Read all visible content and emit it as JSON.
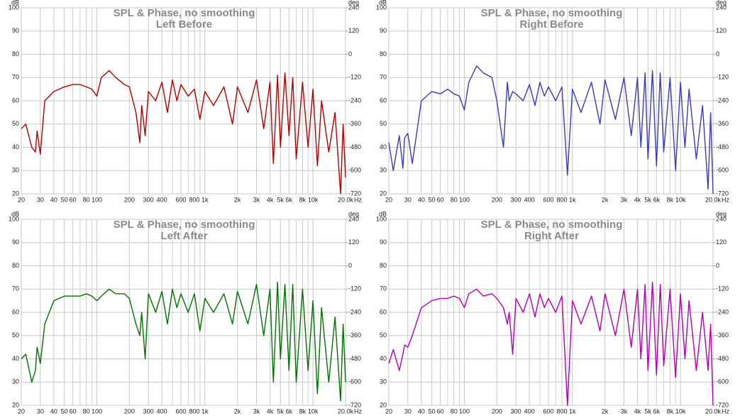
{
  "chart_data": [
    {
      "type": "line",
      "title": "SPL & Phase, no smoothing",
      "subtitle": "Left Before",
      "ylabel": "dB",
      "y2label": "deg",
      "xlabel": "Hz",
      "xscale": "log",
      "grid": true,
      "color": "#b00000",
      "xlim": [
        20,
        20000
      ],
      "ylim": [
        20,
        100
      ],
      "y2lim": [
        -720,
        240
      ],
      "xticks": [
        20,
        30,
        40,
        50,
        60,
        80,
        100,
        200,
        300,
        400,
        600,
        800,
        {
          "value": 1000,
          "label": "1k"
        },
        {
          "value": 2000,
          "label": "2k"
        },
        {
          "value": 3000,
          "label": "3k"
        },
        {
          "value": 4000,
          "label": "4k"
        },
        {
          "value": 5000,
          "label": "5k"
        },
        {
          "value": 6000,
          "label": "6k"
        },
        {
          "value": 8000,
          "label": "8k"
        },
        {
          "value": 10000,
          "label": "10k"
        },
        {
          "value": 20000,
          "label": "20.0k"
        }
      ],
      "xminorticks": [
        70,
        90,
        500,
        700,
        900,
        7000,
        9000
      ],
      "yticks": [
        20,
        30,
        40,
        50,
        60,
        70,
        80,
        90,
        100
      ],
      "y2ticks": [
        -720,
        -600,
        -480,
        -360,
        -240,
        -120,
        0,
        120,
        240
      ],
      "x": [
        20,
        22,
        25,
        27,
        28,
        30,
        33,
        40,
        50,
        60,
        70,
        80,
        90,
        100,
        110,
        130,
        150,
        180,
        200,
        230,
        250,
        260,
        280,
        300,
        350,
        400,
        450,
        500,
        550,
        600,
        700,
        800,
        900,
        1000,
        1200,
        1500,
        1800,
        2000,
        2500,
        3000,
        3500,
        4000,
        4300,
        4700,
        5000,
        5500,
        6000,
        6500,
        7000,
        8000,
        9000,
        10000,
        11000,
        12000,
        14000,
        16000,
        18000,
        19000,
        20000
      ],
      "values": [
        48,
        50,
        40,
        38,
        47,
        37,
        60,
        64,
        66,
        67,
        67,
        66,
        65,
        62,
        70,
        73,
        70,
        67,
        66,
        55,
        42,
        58,
        45,
        64,
        60,
        68,
        55,
        69,
        60,
        67,
        62,
        65,
        52,
        64,
        58,
        66,
        50,
        66,
        55,
        69,
        48,
        68,
        33,
        71,
        40,
        72,
        45,
        70,
        35,
        68,
        40,
        65,
        32,
        60,
        38,
        55,
        20,
        50,
        27
      ]
    },
    {
      "type": "line",
      "title": "SPL & Phase, no smoothing",
      "subtitle": "Right Before",
      "ylabel": "dB",
      "y2label": "deg",
      "xlabel": "Hz",
      "xscale": "log",
      "grid": true,
      "color": "#3a3ab8",
      "xlim": [
        20,
        20000
      ],
      "ylim": [
        20,
        100
      ],
      "y2lim": [
        -720,
        240
      ],
      "xticks": [
        20,
        30,
        40,
        50,
        60,
        80,
        100,
        200,
        300,
        400,
        600,
        800,
        {
          "value": 1000,
          "label": "1k"
        },
        {
          "value": 2000,
          "label": "2k"
        },
        {
          "value": 3000,
          "label": "3k"
        },
        {
          "value": 4000,
          "label": "4k"
        },
        {
          "value": 5000,
          "label": "5k"
        },
        {
          "value": 6000,
          "label": "6k"
        },
        {
          "value": 8000,
          "label": "8k"
        },
        {
          "value": 10000,
          "label": "10k"
        },
        {
          "value": 20000,
          "label": "20.0k"
        }
      ],
      "xminorticks": [
        70,
        90,
        500,
        700,
        900,
        7000,
        9000
      ],
      "yticks": [
        20,
        30,
        40,
        50,
        60,
        70,
        80,
        90,
        100
      ],
      "y2ticks": [
        -720,
        -600,
        -480,
        -360,
        -240,
        -120,
        0,
        120,
        240
      ],
      "x": [
        20,
        22,
        25,
        27,
        28,
        30,
        33,
        40,
        50,
        60,
        70,
        80,
        90,
        100,
        110,
        130,
        150,
        180,
        200,
        230,
        250,
        260,
        280,
        300,
        350,
        400,
        450,
        500,
        550,
        600,
        700,
        800,
        900,
        1000,
        1200,
        1500,
        1800,
        2000,
        2500,
        3000,
        3500,
        4000,
        4300,
        4700,
        5000,
        5500,
        6000,
        6500,
        7000,
        8000,
        9000,
        10000,
        11000,
        12000,
        14000,
        16000,
        18000,
        19000,
        20000
      ],
      "values": [
        42,
        30,
        45,
        31,
        44,
        46,
        33,
        60,
        64,
        63,
        65,
        63,
        62,
        56,
        68,
        75,
        72,
        70,
        60,
        40,
        68,
        60,
        64,
        63,
        60,
        67,
        58,
        68,
        62,
        66,
        60,
        66,
        28,
        65,
        55,
        68,
        50,
        69,
        52,
        70,
        45,
        70,
        40,
        72,
        35,
        73,
        32,
        72,
        38,
        70,
        30,
        68,
        40,
        65,
        35,
        58,
        22,
        55,
        20
      ]
    },
    {
      "type": "line",
      "title": "SPL & Phase, no smoothing",
      "subtitle": "Left After",
      "ylabel": "dB",
      "y2label": "deg",
      "xlabel": "Hz",
      "xscale": "log",
      "grid": true,
      "color": "#007000",
      "xlim": [
        20,
        20000
      ],
      "ylim": [
        20,
        100
      ],
      "y2lim": [
        -720,
        240
      ],
      "xticks": [
        20,
        30,
        40,
        50,
        60,
        80,
        100,
        200,
        300,
        400,
        600,
        800,
        {
          "value": 1000,
          "label": "1k"
        },
        {
          "value": 2000,
          "label": "2k"
        },
        {
          "value": 3000,
          "label": "3k"
        },
        {
          "value": 4000,
          "label": "4k"
        },
        {
          "value": 5000,
          "label": "5k"
        },
        {
          "value": 6000,
          "label": "6k"
        },
        {
          "value": 8000,
          "label": "8k"
        },
        {
          "value": 10000,
          "label": "10k"
        },
        {
          "value": 20000,
          "label": "20.0k"
        }
      ],
      "xminorticks": [
        70,
        90,
        500,
        700,
        900,
        7000,
        9000
      ],
      "yticks": [
        20,
        30,
        40,
        50,
        60,
        70,
        80,
        90,
        100
      ],
      "y2ticks": [
        -720,
        -600,
        -480,
        -360,
        -240,
        -120,
        0,
        120,
        240
      ],
      "x": [
        20,
        22,
        25,
        27,
        28,
        30,
        33,
        40,
        50,
        60,
        70,
        80,
        90,
        100,
        110,
        130,
        150,
        180,
        200,
        230,
        250,
        260,
        280,
        300,
        350,
        400,
        450,
        500,
        550,
        600,
        700,
        800,
        900,
        1000,
        1200,
        1500,
        1800,
        2000,
        2500,
        3000,
        3500,
        4000,
        4300,
        4700,
        5000,
        5500,
        6000,
        6500,
        7000,
        8000,
        9000,
        10000,
        11000,
        12000,
        14000,
        16000,
        18000,
        19000,
        20000
      ],
      "values": [
        40,
        42,
        30,
        35,
        45,
        38,
        55,
        65,
        67,
        67,
        67,
        68,
        67,
        65,
        67,
        70,
        68,
        68,
        66,
        55,
        50,
        60,
        40,
        68,
        60,
        69,
        55,
        70,
        62,
        68,
        60,
        68,
        52,
        66,
        60,
        68,
        55,
        69,
        55,
        72,
        50,
        70,
        30,
        73,
        40,
        72,
        35,
        72,
        30,
        70,
        35,
        65,
        25,
        62,
        30,
        58,
        22,
        55,
        30
      ]
    },
    {
      "type": "line",
      "title": "SPL & Phase, no smoothing",
      "subtitle": "Right After",
      "ylabel": "dB",
      "y2label": "deg",
      "xlabel": "Hz",
      "xscale": "log",
      "grid": true,
      "color": "#b000b0",
      "xlim": [
        20,
        20000
      ],
      "ylim": [
        20,
        100
      ],
      "y2lim": [
        -720,
        240
      ],
      "xticks": [
        20,
        30,
        40,
        50,
        60,
        80,
        100,
        200,
        300,
        400,
        600,
        800,
        {
          "value": 1000,
          "label": "1k"
        },
        {
          "value": 2000,
          "label": "2k"
        },
        {
          "value": 3000,
          "label": "3k"
        },
        {
          "value": 4000,
          "label": "4k"
        },
        {
          "value": 5000,
          "label": "5k"
        },
        {
          "value": 6000,
          "label": "6k"
        },
        {
          "value": 8000,
          "label": "8k"
        },
        {
          "value": 10000,
          "label": "10k"
        },
        {
          "value": 20000,
          "label": "20.0k"
        }
      ],
      "xminorticks": [
        70,
        90,
        500,
        700,
        900,
        7000,
        9000
      ],
      "yticks": [
        20,
        30,
        40,
        50,
        60,
        70,
        80,
        90,
        100
      ],
      "y2ticks": [
        -720,
        -600,
        -480,
        -360,
        -240,
        -120,
        0,
        120,
        240
      ],
      "x": [
        20,
        22,
        25,
        27,
        28,
        30,
        33,
        40,
        50,
        60,
        70,
        80,
        90,
        100,
        110,
        130,
        150,
        180,
        200,
        230,
        250,
        260,
        280,
        300,
        350,
        400,
        450,
        500,
        550,
        600,
        700,
        800,
        900,
        1000,
        1200,
        1500,
        1800,
        2000,
        2500,
        3000,
        3500,
        4000,
        4300,
        4700,
        5000,
        5500,
        6000,
        6500,
        7000,
        8000,
        9000,
        10000,
        11000,
        12000,
        14000,
        16000,
        18000,
        19000,
        20000
      ],
      "values": [
        38,
        44,
        35,
        42,
        46,
        45,
        50,
        62,
        65,
        66,
        66,
        67,
        66,
        62,
        68,
        70,
        67,
        68,
        66,
        62,
        55,
        60,
        42,
        66,
        60,
        68,
        58,
        68,
        62,
        66,
        60,
        67,
        20,
        65,
        55,
        67,
        52,
        68,
        50,
        70,
        45,
        70,
        40,
        72,
        35,
        73,
        33,
        72,
        37,
        70,
        32,
        68,
        40,
        65,
        35,
        60,
        35,
        55,
        20
      ]
    }
  ]
}
